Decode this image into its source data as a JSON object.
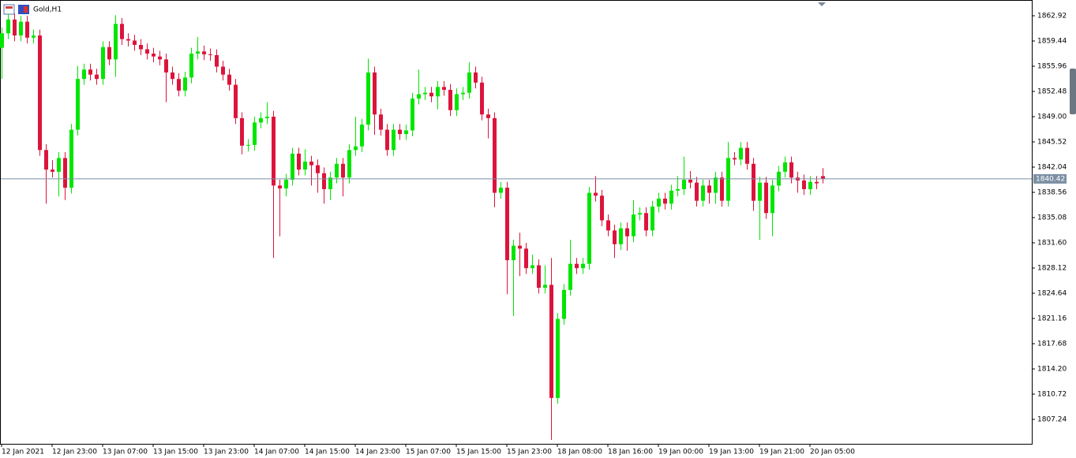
{
  "chart_data": {
    "type": "candlestick",
    "title": "Gold,H1",
    "categories": [
      "12 Jan 2021",
      null,
      null,
      null,
      null,
      null,
      null,
      null,
      "12 Jan 23:00",
      null,
      null,
      null,
      null,
      null,
      null,
      null,
      "13 Jan 07:00",
      null,
      null,
      null,
      null,
      null,
      null,
      null,
      "13 Jan 15:00",
      null,
      null,
      null,
      null,
      null,
      null,
      null,
      "13 Jan 23:00",
      null,
      null,
      null,
      null,
      null,
      null,
      null,
      "14 Jan 07:00",
      null,
      null,
      null,
      null,
      null,
      null,
      null,
      "14 Jan 15:00",
      null,
      null,
      null,
      null,
      null,
      null,
      null,
      "14 Jan 23:00",
      null,
      null,
      null,
      null,
      null,
      null,
      null,
      "15 Jan 07:00",
      null,
      null,
      null,
      null,
      null,
      null,
      null,
      "15 Jan 15:00",
      null,
      null,
      null,
      null,
      null,
      null,
      null,
      "15 Jan 23:00",
      null,
      null,
      null,
      null,
      null,
      null,
      null,
      "18 Jan 08:00",
      null,
      null,
      null,
      null,
      null,
      null,
      null,
      "18 Jan 16:00",
      null,
      null,
      null,
      null,
      null,
      null,
      null,
      "19 Jan 00:00",
      null,
      null,
      null,
      null,
      null,
      null,
      null,
      "19 Jan 13:00",
      null,
      null,
      null,
      null,
      null,
      null,
      null,
      "19 Jan 21:00",
      null,
      null,
      null,
      null,
      null,
      null,
      null,
      "20 Jan 05:00",
      null,
      null
    ],
    "open": [
      1858.5,
      1860.5,
      1862.4,
      1860.2,
      1862.1,
      1859.9,
      1860.2,
      1844.4,
      1841.7,
      1841.4,
      1843.3,
      1839.2,
      1847.2,
      1854.2,
      1855.5,
      1854.8,
      1854.2,
      1858.6,
      1856.9,
      1861.8,
      1859.7,
      1859.5,
      1858.9,
      1858.3,
      1857.7,
      1857.3,
      1856.9,
      1855.1,
      1854.2,
      1852.6,
      1854.4,
      1857.7,
      1858.0,
      1857.6,
      1857.5,
      1855.9,
      1854.8,
      1853.4,
      1848.8,
      1845.0,
      1845.1,
      1848.2,
      1848.8,
      1849.0,
      1839.5,
      1839.1,
      1840.3,
      1843.9,
      1841.7,
      1842.8,
      1842.3,
      1841.2,
      1839.0,
      1840.6,
      1842.5,
      1840.6,
      1844.4,
      1844.9,
      1847.9,
      1855.1,
      1849.3,
      1847.2,
      1844.4,
      1847.2,
      1846.6,
      1847.1,
      1851.5,
      1852.1,
      1852.3,
      1851.8,
      1853.1,
      1852.7,
      1849.9,
      1852.1,
      1852.3,
      1855.1,
      1853.7,
      1849.3,
      1848.8,
      1838.5,
      1839.2,
      1829.2,
      1831.2,
      1830.8,
      1828.1,
      1828.5,
      1825.4,
      1825.8,
      1810.2,
      1821.1,
      1825.1,
      1828.7,
      1828.1,
      1828.7,
      1838.5,
      1838.1,
      1834.7,
      1833.3,
      1831.4,
      1833.6,
      1832.5,
      1835.5,
      1835.7,
      1833.3,
      1836.6,
      1837.7,
      1837.0,
      1838.8,
      1839.0,
      1840.3,
      1839.9,
      1837.4,
      1839.5,
      1838.5,
      1840.6,
      1837.4,
      1843.3,
      1843.1,
      1844.7,
      1842.5,
      1837.4,
      1839.9,
      1835.7,
      1839.5,
      1841.4,
      1842.7,
      1840.6,
      1840.2,
      1839.0,
      1840.0,
      1840.8
    ],
    "high": [
      1861.3,
      1863.2,
      1863.2,
      1862.9,
      1862.9,
      1861.0,
      1861.0,
      1845.2,
      1843.0,
      1844.1,
      1844.1,
      1848.0,
      1856.0,
      1856.3,
      1856.3,
      1855.6,
      1859.4,
      1859.4,
      1863.0,
      1862.6,
      1860.5,
      1860.3,
      1859.7,
      1859.1,
      1858.5,
      1858.1,
      1857.7,
      1855.9,
      1855.0,
      1855.2,
      1858.5,
      1860.0,
      1858.8,
      1858.4,
      1858.3,
      1856.7,
      1855.6,
      1854.2,
      1849.6,
      1845.9,
      1849.0,
      1849.6,
      1851.0,
      1849.8,
      1840.3,
      1841.1,
      1844.7,
      1844.7,
      1844.5,
      1843.6,
      1843.1,
      1842.0,
      1841.4,
      1843.3,
      1843.3,
      1845.2,
      1849.0,
      1848.7,
      1857.0,
      1855.9,
      1850.1,
      1848.0,
      1848.0,
      1848.0,
      1847.9,
      1852.3,
      1855.5,
      1853.1,
      1853.1,
      1853.9,
      1853.9,
      1853.5,
      1852.9,
      1853.1,
      1856.5,
      1855.9,
      1854.5,
      1850.1,
      1849.6,
      1840.0,
      1840.0,
      1832.0,
      1833.0,
      1831.6,
      1830.0,
      1829.3,
      1828.5,
      1829.5,
      1821.9,
      1825.9,
      1832.0,
      1829.5,
      1829.5,
      1839.3,
      1840.8,
      1838.9,
      1835.5,
      1834.1,
      1834.4,
      1834.4,
      1837.5,
      1836.5,
      1836.5,
      1837.4,
      1838.5,
      1838.5,
      1839.6,
      1840.8,
      1843.5,
      1841.5,
      1840.7,
      1840.3,
      1840.3,
      1841.4,
      1841.4,
      1845.5,
      1844.1,
      1845.5,
      1845.5,
      1843.3,
      1840.7,
      1840.7,
      1840.3,
      1842.2,
      1843.5,
      1843.5,
      1841.4,
      1841.0,
      1840.8,
      1840.8,
      1841.9
    ],
    "low": [
      1854.2,
      1859.7,
      1859.4,
      1859.4,
      1859.1,
      1859.1,
      1843.6,
      1837.0,
      1840.6,
      1838.0,
      1837.5,
      1838.4,
      1846.4,
      1853.4,
      1854.0,
      1853.4,
      1853.4,
      1856.1,
      1854.5,
      1858.9,
      1858.7,
      1858.1,
      1857.5,
      1856.9,
      1856.5,
      1856.1,
      1851.0,
      1853.4,
      1851.8,
      1851.8,
      1853.6,
      1856.9,
      1856.8,
      1856.7,
      1855.1,
      1854.0,
      1852.6,
      1848.0,
      1843.8,
      1844.2,
      1844.3,
      1847.4,
      1848.0,
      1829.5,
      1832.5,
      1838.0,
      1839.5,
      1840.9,
      1840.9,
      1839.5,
      1838.5,
      1837.0,
      1837.5,
      1839.8,
      1838.0,
      1839.8,
      1843.6,
      1844.1,
      1847.1,
      1846.5,
      1846.4,
      1843.6,
      1843.6,
      1845.8,
      1845.8,
      1846.3,
      1850.7,
      1851.3,
      1851.0,
      1850.0,
      1851.9,
      1849.1,
      1849.1,
      1851.3,
      1851.5,
      1852.9,
      1848.5,
      1846.0,
      1836.5,
      1837.7,
      1824.5,
      1821.5,
      1827.0,
      1827.3,
      1827.3,
      1824.6,
      1824.6,
      1804.4,
      1809.4,
      1820.3,
      1824.3,
      1827.3,
      1827.3,
      1827.9,
      1837.3,
      1833.9,
      1832.5,
      1829.5,
      1830.6,
      1830.5,
      1831.7,
      1834.7,
      1832.5,
      1832.5,
      1835.8,
      1836.2,
      1836.2,
      1838.0,
      1838.2,
      1839.1,
      1836.6,
      1836.6,
      1837.0,
      1837.0,
      1836.6,
      1836.6,
      1842.3,
      1842.3,
      1841.7,
      1836.0,
      1832.0,
      1834.9,
      1832.5,
      1838.7,
      1840.6,
      1839.8,
      1838.5,
      1838.2,
      1838.2,
      1839.0,
      1839.8
    ],
    "close": [
      1860.5,
      1862.4,
      1860.2,
      1862.1,
      1859.9,
      1860.2,
      1844.4,
      1841.7,
      1841.4,
      1843.3,
      1839.2,
      1847.2,
      1854.2,
      1855.5,
      1854.8,
      1854.2,
      1858.6,
      1856.9,
      1861.8,
      1859.7,
      1859.5,
      1858.9,
      1858.3,
      1857.7,
      1857.3,
      1856.9,
      1855.1,
      1854.2,
      1852.6,
      1854.4,
      1857.7,
      1858.0,
      1857.6,
      1857.5,
      1855.9,
      1854.8,
      1853.4,
      1848.8,
      1845.0,
      1845.1,
      1848.2,
      1848.8,
      1849.0,
      1839.5,
      1839.1,
      1840.3,
      1843.9,
      1841.7,
      1842.8,
      1842.3,
      1841.2,
      1839.0,
      1840.6,
      1842.5,
      1840.6,
      1844.4,
      1844.9,
      1847.9,
      1855.1,
      1849.3,
      1847.2,
      1844.4,
      1847.2,
      1846.6,
      1847.1,
      1851.5,
      1852.1,
      1852.3,
      1851.8,
      1853.1,
      1852.7,
      1849.9,
      1852.1,
      1852.3,
      1855.1,
      1853.7,
      1849.3,
      1848.8,
      1838.5,
      1839.2,
      1829.2,
      1831.2,
      1830.8,
      1828.1,
      1828.5,
      1825.4,
      1825.8,
      1810.2,
      1821.1,
      1825.1,
      1828.7,
      1828.1,
      1828.7,
      1838.5,
      1838.1,
      1834.7,
      1833.3,
      1831.4,
      1833.6,
      1832.5,
      1835.5,
      1835.7,
      1833.3,
      1836.6,
      1837.7,
      1837.0,
      1838.8,
      1839.0,
      1840.3,
      1839.9,
      1837.4,
      1839.5,
      1838.5,
      1840.6,
      1837.4,
      1843.3,
      1843.1,
      1844.7,
      1842.5,
      1837.4,
      1839.9,
      1835.7,
      1839.5,
      1841.4,
      1842.7,
      1840.6,
      1840.2,
      1839.0,
      1840.0,
      1839.8,
      1840.42
    ],
    "up_color": "#00e600",
    "down_color": "#dc143c",
    "ylim": [
      1803.87,
      1864.55
    ],
    "yticks": [
      1862.92,
      1859.44,
      1855.96,
      1852.48,
      {
        "value": 1849,
        "label": "1849.00"
      },
      1845.52,
      1842.04,
      1838.56,
      1835.08,
      {
        "value": 1831.6,
        "label": "1831.60"
      },
      1828.12,
      1824.64,
      1821.16,
      1817.68,
      {
        "value": 1814.2,
        "label": "1814.20"
      },
      1810.72,
      1807.24
    ],
    "last_price": 1840.42,
    "last_price_color": "#7a8fa3"
  }
}
